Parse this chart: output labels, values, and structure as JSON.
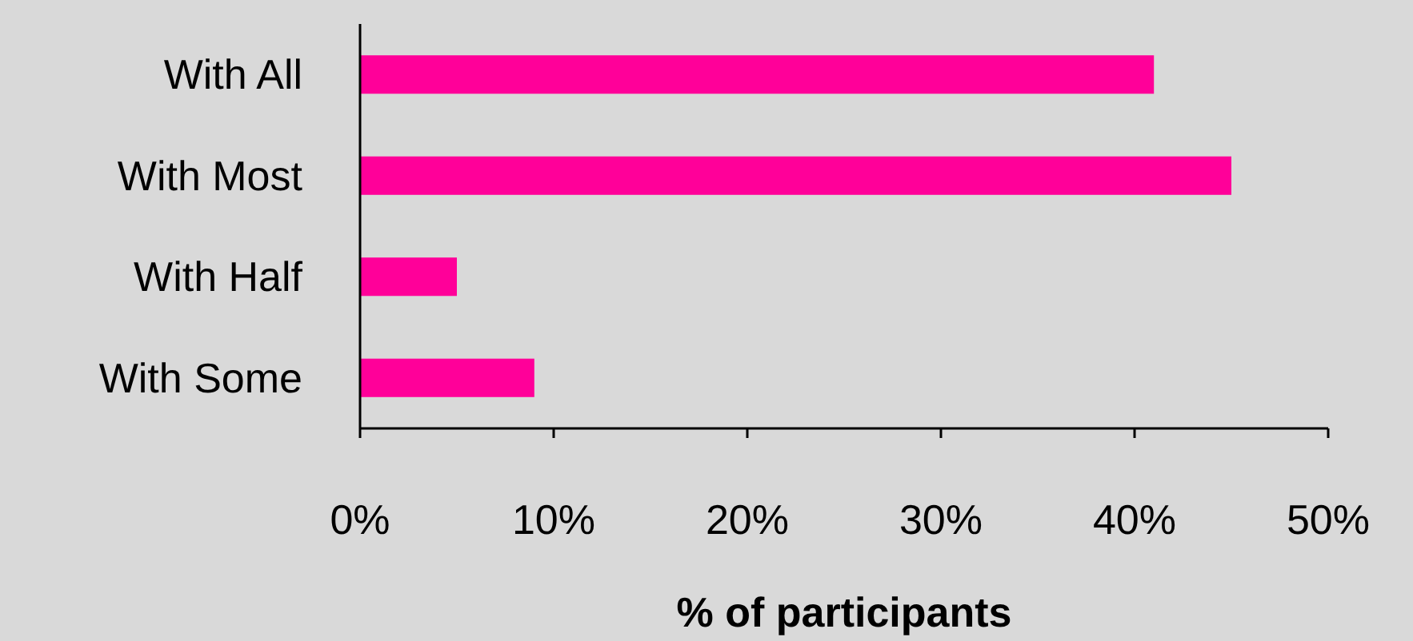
{
  "chart_data": {
    "type": "bar",
    "orientation": "horizontal",
    "xlabel": "% of participants",
    "categories": [
      "With All",
      "With Most",
      "With Half",
      "With Some"
    ],
    "values": [
      41,
      45,
      5,
      9
    ],
    "color": "#ff0099",
    "xlim": [
      0,
      50
    ],
    "xticks": [
      {
        "value": 0,
        "label": "0%"
      },
      {
        "value": 10,
        "label": "10%"
      },
      {
        "value": 20,
        "label": "20%"
      },
      {
        "value": 30,
        "label": "30%"
      },
      {
        "value": 40,
        "label": "40%"
      },
      {
        "value": 50,
        "label": "50%"
      }
    ],
    "grid": false
  }
}
